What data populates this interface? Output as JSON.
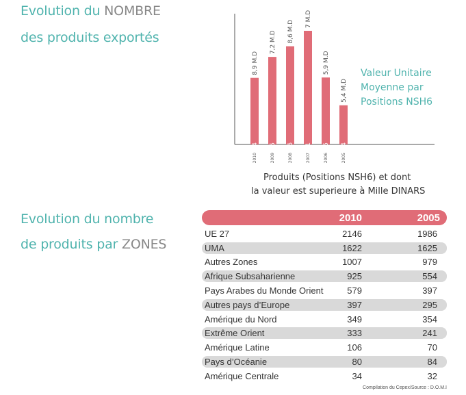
{
  "section1": {
    "title_part1": "Evolution du ",
    "title_part1_grey": "NOMBRE",
    "title_part2": "des produits exportés"
  },
  "section2": {
    "title_part1": "Evolution du nombre",
    "title_part2": "de produits par ",
    "title_part2_grey": "ZONES"
  },
  "chart_data": {
    "type": "bar",
    "categories": [
      "2010",
      "2009",
      "2008",
      "2007",
      "2006",
      "2005"
    ],
    "values": [
      2644,
      2705,
      2736,
      2781,
      2645,
      2564
    ],
    "value_labels": [
      "8,9 M.D",
      "7,2 M.D",
      "8,6 M.D",
      "7 M.D",
      "5,9 M.D",
      "5,4 M.D"
    ],
    "title": "",
    "xlabel": "Produits (Positions NSH6) et dont",
    "xlabel_line2": "la valeur est superieure à Mille DINARS",
    "annotation": [
      "Valeur Unitaire",
      "Moyenne par",
      "Positions  NSH6"
    ],
    "bar_color": "#e06c77",
    "grid": false
  },
  "table": {
    "headers": [
      "2010",
      "2005"
    ],
    "rows": [
      {
        "name": "UE 27",
        "v2010": "2146",
        "v2005": "1986"
      },
      {
        "name": "UMA",
        "v2010": "1622",
        "v2005": "1625"
      },
      {
        "name": "Autres Zones",
        "v2010": "1007",
        "v2005": "979"
      },
      {
        "name": "Afrique Subsaharienne",
        "v2010": "925",
        "v2005": "554"
      },
      {
        "name": "Pays Arabes du Monde Orient",
        "v2010": "579",
        "v2005": "397"
      },
      {
        "name": "Autres pays d’Europe",
        "v2010": "397",
        "v2005": "295"
      },
      {
        "name": "Amérique du Nord",
        "v2010": "349",
        "v2005": "354"
      },
      {
        "name": "Extrême Orient",
        "v2010": "333",
        "v2005": "241"
      },
      {
        "name": "Amérique Latine",
        "v2010": "106",
        "v2005": "70"
      },
      {
        "name": "Pays d’Océanie",
        "v2010": "80",
        "v2005": "84"
      },
      {
        "name": "Amérique Centrale",
        "v2010": "34",
        "v2005": "32"
      }
    ],
    "header_color": "#e06c77",
    "shade_color": "#d9d9d9"
  },
  "source": "Compilation du Cepex/Source : D.O.M.I"
}
